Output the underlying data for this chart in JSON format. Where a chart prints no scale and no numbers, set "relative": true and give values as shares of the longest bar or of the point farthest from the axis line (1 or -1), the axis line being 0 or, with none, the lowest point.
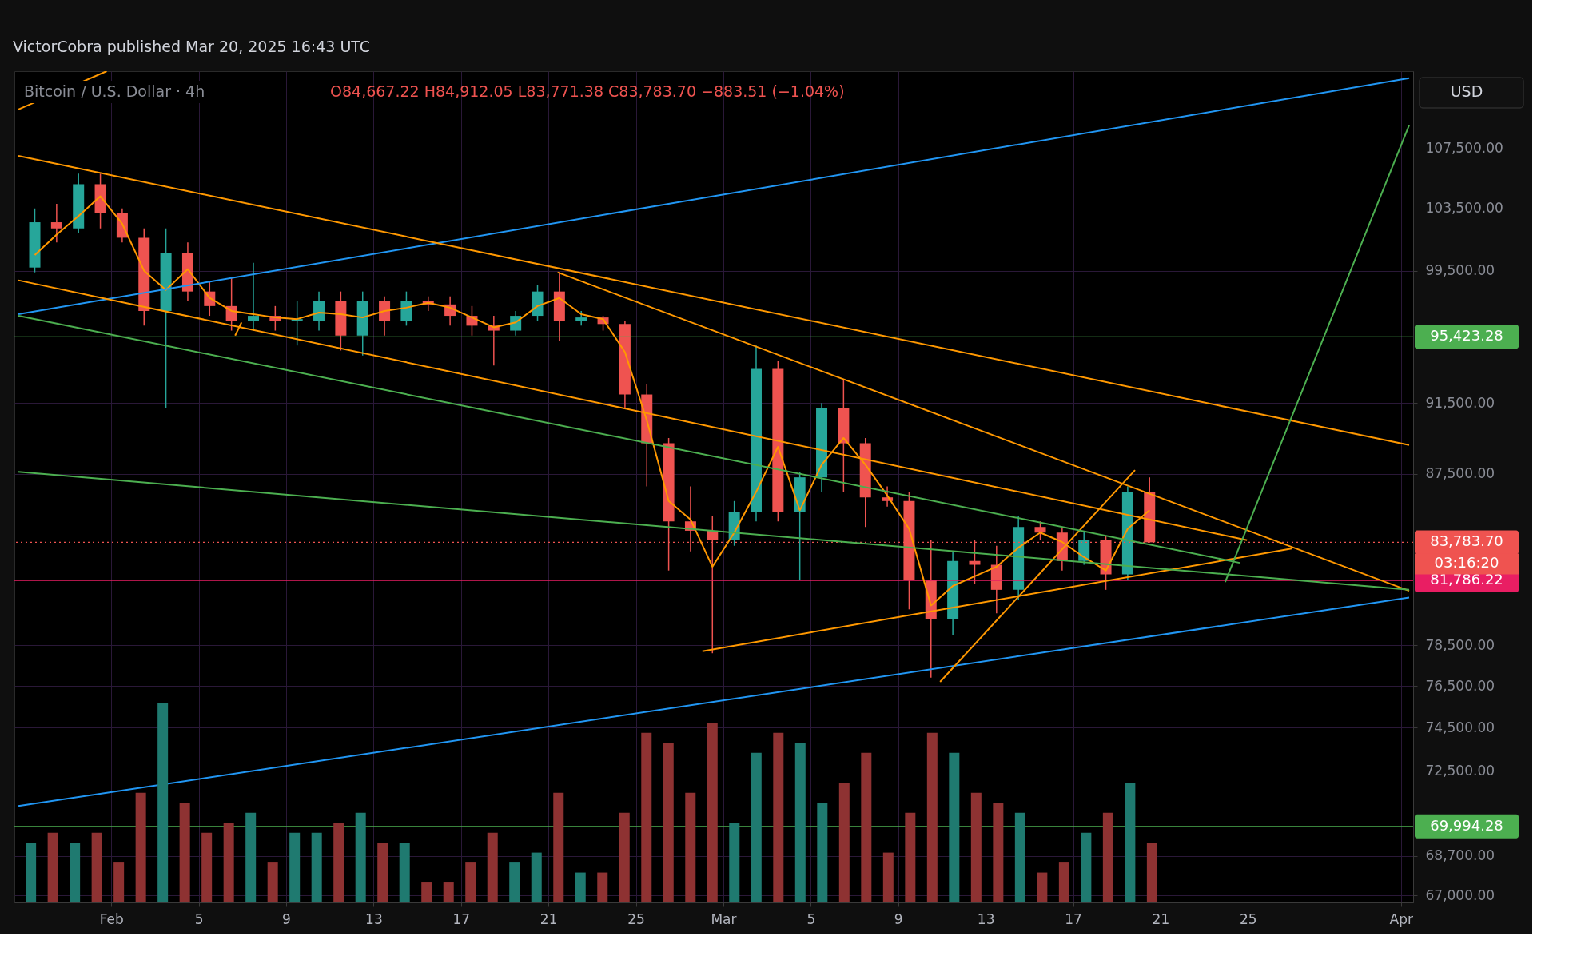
{
  "chart_data": [
    {
      "type": "candlestick",
      "title": "Bitcoin / U.S. Dollar · 4h",
      "annotations": [
        "VictorCobra published Mar 20, 2025 16:43 UTC",
        "O84,667.22 H84,912.05 L83,771.38 C83,783.70 −883.51 (−1.04%)",
        "USD",
        "03:16:20"
      ],
      "x": [
        "2025-01-28T12:00",
        "2025-01-29T12:00",
        "2025-01-30T12:00",
        "2025-01-31T12:00",
        "2025-02-01T12:00",
        "2025-02-02T12:00",
        "2025-02-03T12:00",
        "2025-02-04T12:00",
        "2025-02-05T12:00",
        "2025-02-06T12:00",
        "2025-02-07T12:00",
        "2025-02-08T12:00",
        "2025-02-09T12:00",
        "2025-02-10T12:00",
        "2025-02-11T12:00",
        "2025-02-12T12:00",
        "2025-02-13T12:00",
        "2025-02-14T12:00",
        "2025-02-15T12:00",
        "2025-02-16T12:00",
        "2025-02-17T12:00",
        "2025-02-18T12:00",
        "2025-02-19T12:00",
        "2025-02-20T12:00",
        "2025-02-21T12:00",
        "2025-02-22T12:00",
        "2025-02-23T12:00",
        "2025-02-24T12:00",
        "2025-02-25T12:00",
        "2025-02-26T12:00",
        "2025-02-27T12:00",
        "2025-02-28T12:00",
        "2025-03-01T12:00",
        "2025-03-02T12:00",
        "2025-03-03T12:00",
        "2025-03-04T12:00",
        "2025-03-05T12:00",
        "2025-03-06T12:00",
        "2025-03-07T12:00",
        "2025-03-08T12:00",
        "2025-03-09T12:00",
        "2025-03-10T12:00",
        "2025-03-11T12:00",
        "2025-03-12T12:00",
        "2025-03-13T12:00",
        "2025-03-14T12:00",
        "2025-03-15T12:00",
        "2025-03-16T12:00",
        "2025-03-17T12:00",
        "2025-03-18T12:00",
        "2025-03-19T12:00",
        "2025-03-20T12:00"
      ],
      "ohlc": [
        [
          99700,
          103500,
          99400,
          102600
        ],
        [
          102600,
          103800,
          101300,
          102200
        ],
        [
          102200,
          105800,
          101900,
          105100
        ],
        [
          105100,
          105800,
          102200,
          103200
        ],
        [
          103200,
          103500,
          101300,
          101600
        ],
        [
          101600,
          102200,
          96100,
          97000
        ],
        [
          97000,
          102200,
          91200,
          100600
        ],
        [
          100600,
          101300,
          97600,
          98200
        ],
        [
          98200,
          98800,
          96700,
          97300
        ],
        [
          97300,
          99100,
          95800,
          96400
        ],
        [
          96400,
          100000,
          95800,
          96700
        ],
        [
          96700,
          97300,
          95800,
          96400
        ],
        [
          96400,
          97600,
          94900,
          96500
        ],
        [
          96400,
          98200,
          95800,
          97600
        ],
        [
          97600,
          98200,
          94600,
          95500
        ],
        [
          95500,
          98200,
          94300,
          97600
        ],
        [
          97600,
          97900,
          95500,
          96400
        ],
        [
          96400,
          98200,
          96100,
          97600
        ],
        [
          97600,
          97900,
          97000,
          97400
        ],
        [
          97400,
          97900,
          96100,
          96700
        ],
        [
          96700,
          97300,
          95500,
          96100
        ],
        [
          96100,
          96700,
          93700,
          95800
        ],
        [
          95800,
          97000,
          95500,
          96700
        ],
        [
          96700,
          98600,
          96400,
          98200
        ],
        [
          98200,
          99400,
          95200,
          96400
        ],
        [
          96400,
          97000,
          96100,
          96600
        ],
        [
          96600,
          96700,
          95800,
          96200
        ],
        [
          96200,
          96400,
          91200,
          92000
        ],
        [
          92000,
          92600,
          86800,
          89200
        ],
        [
          89200,
          89500,
          82300,
          84900
        ],
        [
          84900,
          86800,
          83300,
          84400
        ],
        [
          84400,
          85200,
          78100,
          83900
        ],
        [
          83900,
          86000,
          83600,
          85400
        ],
        [
          85400,
          94900,
          84900,
          93500
        ],
        [
          93500,
          94000,
          84900,
          85400
        ],
        [
          85400,
          87600,
          81800,
          87300
        ],
        [
          87300,
          91500,
          86500,
          91200
        ],
        [
          91200,
          92900,
          86500,
          89200
        ],
        [
          89200,
          89500,
          84600,
          86200
        ],
        [
          86200,
          86800,
          85700,
          86000
        ],
        [
          86000,
          86500,
          80300,
          81800
        ],
        [
          81800,
          83900,
          76900,
          79800
        ],
        [
          79800,
          83300,
          79000,
          82800
        ],
        [
          82800,
          83900,
          81600,
          82600
        ],
        [
          82600,
          83600,
          80100,
          81300
        ],
        [
          81300,
          85200,
          80800,
          84600
        ],
        [
          84600,
          84900,
          83900,
          84300
        ],
        [
          84300,
          84600,
          82300,
          82800
        ],
        [
          82800,
          84400,
          82600,
          83900
        ],
        [
          83900,
          84100,
          81300,
          82100
        ],
        [
          82100,
          86800,
          81800,
          86500
        ],
        [
          86500,
          87300,
          83771.38,
          83783.7
        ]
      ],
      "colors": [
        "#26a69a",
        "#ef5350",
        "#26a69a",
        "#ef5350",
        "#ef5350",
        "#ef5350",
        "#26a69a",
        "#ef5350",
        "#ef5350",
        "#ef5350",
        "#26a69a",
        "#ef5350",
        "#26a69a",
        "#26a69a",
        "#ef5350",
        "#26a69a",
        "#ef5350",
        "#26a69a",
        "#ef5350",
        "#ef5350",
        "#ef5350",
        "#ef5350",
        "#26a69a",
        "#26a69a",
        "#ef5350",
        "#26a69a",
        "#ef5350",
        "#ef5350",
        "#ef5350",
        "#ef5350",
        "#ef5350",
        "#ef5350",
        "#26a69a",
        "#26a69a",
        "#ef5350",
        "#26a69a",
        "#26a69a",
        "#ef5350",
        "#ef5350",
        "#ef5350",
        "#ef5350",
        "#ef5350",
        "#26a69a",
        "#ef5350",
        "#ef5350",
        "#26a69a",
        "#ef5350",
        "#ef5350",
        "#26a69a",
        "#ef5350",
        "#26a69a",
        "#ef5350"
      ],
      "series": [
        {
          "type": "line",
          "color": "#ff9800",
          "x": [
            "2025-01-28T12:00",
            "2025-01-29T12:00",
            "2025-01-30T12:00",
            "2025-01-31T12:00",
            "2025-02-01T12:00",
            "2025-02-02T12:00",
            "2025-02-03T12:00",
            "2025-02-04T12:00",
            "2025-02-05T12:00",
            "2025-02-06T12:00",
            "2025-02-07T12:00",
            "2025-02-08T12:00",
            "2025-02-09T12:00",
            "2025-02-10T12:00",
            "2025-02-11T12:00",
            "2025-02-12T12:00",
            "2025-02-13T12:00",
            "2025-02-14T12:00",
            "2025-02-15T12:00",
            "2025-02-16T12:00",
            "2025-02-17T12:00",
            "2025-02-18T12:00",
            "2025-02-19T12:00",
            "2025-02-20T12:00",
            "2025-02-21T12:00",
            "2025-02-22T12:00",
            "2025-02-23T12:00",
            "2025-02-24T12:00",
            "2025-02-25T12:00",
            "2025-02-26T12:00",
            "2025-02-27T12:00",
            "2025-02-28T12:00",
            "2025-03-01T12:00",
            "2025-03-02T12:00",
            "2025-03-03T12:00",
            "2025-03-04T12:00",
            "2025-03-05T12:00",
            "2025-03-06T12:00",
            "2025-03-07T12:00",
            "2025-03-08T12:00",
            "2025-03-09T12:00",
            "2025-03-10T12:00",
            "2025-03-11T12:00",
            "2025-03-12T12:00",
            "2025-03-13T12:00",
            "2025-03-14T12:00",
            "2025-03-15T12:00",
            "2025-03-16T12:00",
            "2025-03-17T12:00",
            "2025-03-18T12:00",
            "2025-03-19T12:00",
            "2025-03-20T12:00"
          ],
          "values": [
            100500,
            101800,
            103000,
            104300,
            102500,
            99500,
            98300,
            99600,
            97800,
            97000,
            96800,
            96600,
            96500,
            96900,
            96800,
            96600,
            97000,
            97200,
            97500,
            97200,
            96600,
            96000,
            96300,
            97300,
            97800,
            96800,
            96500,
            94500,
            90500,
            86000,
            85000,
            82500,
            84300,
            86500,
            89000,
            85500,
            88000,
            89500,
            88000,
            86300,
            84500,
            80500,
            81500,
            82000,
            82500,
            83500,
            84300,
            83800,
            83000,
            82300,
            84500,
            85500
          ]
        },
        {
          "type": "line",
          "color": "#2196f3",
          "x": [
            "2025-01-27T18:00",
            "2025-04-01T09:00"
          ],
          "values": [
            96800,
            112400
          ]
        },
        {
          "type": "line",
          "color": "#2196f3",
          "x": [
            "2025-01-27T18:00",
            "2025-04-01T09:00"
          ],
          "values": [
            70900,
            80900
          ]
        },
        {
          "type": "line",
          "color": "#ff9800",
          "x": [
            "2025-01-27T18:00",
            "2025-01-31T19:00"
          ],
          "values": [
            110200,
            112900
          ]
        },
        {
          "type": "line",
          "color": "#ff9800",
          "x": [
            "2025-01-27T18:00",
            "2025-04-01T09:00"
          ],
          "values": [
            107000,
            89100
          ]
        },
        {
          "type": "line",
          "color": "#ff9800",
          "x": [
            "2025-02-21T10:00",
            "2025-04-01T09:00"
          ],
          "values": [
            99400,
            81250
          ]
        },
        {
          "type": "line",
          "color": "#ff9800",
          "x": [
            "2025-01-27T18:00",
            "2025-03-24T23:00"
          ],
          "values": [
            98900,
            83900
          ]
        },
        {
          "type": "line",
          "color": "#ff9800",
          "x": [
            "2025-02-28T01:00",
            "2025-03-27T00:00"
          ],
          "values": [
            78200,
            83450
          ]
        },
        {
          "type": "line",
          "color": "#ff9800",
          "x": [
            "2025-03-10T22:00",
            "2025-03-19T20:00"
          ],
          "values": [
            76700,
            87700
          ]
        },
        {
          "type": "line",
          "color": "#ff9800",
          "x": [
            "2025-02-06T16:00",
            "2025-02-06T23:00"
          ],
          "values": [
            95500,
            96300
          ]
        },
        {
          "type": "line",
          "color": "#4caf50",
          "x": [
            "2025-01-27T18:00",
            "2025-03-24T15:00"
          ],
          "values": [
            96700,
            82700
          ]
        },
        {
          "type": "line",
          "color": "#4caf50",
          "x": [
            "2025-01-27T18:00",
            "2025-04-01T09:00"
          ],
          "values": [
            87600,
            81300
          ]
        },
        {
          "type": "line",
          "color": "#4caf50",
          "x": [
            "2025-03-23T23:00",
            "2025-04-01T09:00"
          ],
          "values": [
            81700,
            109100
          ]
        }
      ],
      "ref_lines": [
        {
          "axis": "y",
          "value": 95423.28,
          "label": "95,423.28",
          "color": "#4caf50"
        },
        {
          "axis": "y",
          "value": 69994.28,
          "label": "69,994.28",
          "color": "#4caf50"
        },
        {
          "axis": "y",
          "value": 81786.22,
          "label": "81,786.22",
          "color": "#e91e63"
        },
        {
          "axis": "y",
          "value": 83783.7,
          "label": "83,783.70",
          "color": "#ef5350",
          "line_style": "dotted"
        }
      ],
      "xlim": [
        "2025-01-27T18:00",
        "2025-04-01T09:00"
      ],
      "xticks": [
        {
          "value": "2025-02-01T00:00",
          "label": "Feb"
        },
        {
          "value": "2025-02-05T00:00",
          "label": "5"
        },
        {
          "value": "2025-02-09T00:00",
          "label": "9"
        },
        {
          "value": "2025-02-13T00:00",
          "label": "13"
        },
        {
          "value": "2025-02-17T00:00",
          "label": "17"
        },
        {
          "value": "2025-02-21T00:00",
          "label": "21"
        },
        {
          "value": "2025-02-25T00:00",
          "label": "25"
        },
        {
          "value": "2025-03-01T00:00",
          "label": "Mar"
        },
        {
          "value": "2025-03-05T00:00",
          "label": "5"
        },
        {
          "value": "2025-03-09T00:00",
          "label": "9"
        },
        {
          "value": "2025-03-13T00:00",
          "label": "13"
        },
        {
          "value": "2025-03-17T00:00",
          "label": "17"
        },
        {
          "value": "2025-03-21T00:00",
          "label": "21"
        },
        {
          "value": "2025-03-25T00:00",
          "label": "25"
        },
        {
          "value": "2025-04-01T00:00",
          "label": "Apr"
        }
      ],
      "ylim": [
        66700,
        112900
      ],
      "log": true,
      "yticks": [
        {
          "value": 67000,
          "label": "67,000.00"
        },
        {
          "value": 68700,
          "label": "68,700.00"
        },
        {
          "value": 72500,
          "label": "72,500.00"
        },
        {
          "value": 74500,
          "label": "74,500.00"
        },
        {
          "value": 76500,
          "label": "76,500.00"
        },
        {
          "value": 78500,
          "label": "78,500.00"
        },
        {
          "value": 87500,
          "label": "87,500.00"
        },
        {
          "value": 91500,
          "label": "91,500.00"
        },
        {
          "value": 99500,
          "label": "99,500.00"
        },
        {
          "value": 103500,
          "label": "103,500.00"
        },
        {
          "value": 107500,
          "label": "107,500.00"
        }
      ],
      "grid": true
    },
    {
      "type": "bar",
      "relative": true,
      "categories": [
        null,
        null,
        null,
        null,
        null,
        null,
        null,
        null,
        null,
        null,
        null,
        null,
        null,
        null,
        null,
        null,
        null,
        null,
        null,
        null,
        null,
        null,
        null,
        null,
        null,
        null,
        null,
        null,
        null,
        null,
        null,
        null,
        null,
        null,
        null,
        null,
        null,
        null,
        null,
        null,
        null,
        null,
        null,
        null,
        null,
        null,
        null,
        null,
        null,
        null,
        null,
        null
      ],
      "values": [
        0.3,
        0.35,
        0.3,
        0.35,
        0.2,
        0.55,
        1,
        0.5,
        0.35,
        0.4,
        0.45,
        0.2,
        0.35,
        0.35,
        0.4,
        0.45,
        0.3,
        0.3,
        0.1,
        0.1,
        0.2,
        0.35,
        0.2,
        0.25,
        0.55,
        0.15,
        0.15,
        0.45,
        0.85,
        0.8,
        0.55,
        0.9,
        0.4,
        0.75,
        0.85,
        0.8,
        0.5,
        0.6,
        0.75,
        0.25,
        0.45,
        0.85,
        0.75,
        0.55,
        0.5,
        0.45,
        0.15,
        0.2,
        0.35,
        0.45,
        0.6,
        0.3
      ],
      "colors": [
        "#1f7a70",
        "#8e3232",
        "#1f7a70",
        "#8e3232",
        "#8e3232",
        "#8e3232",
        "#1f7a70",
        "#8e3232",
        "#8e3232",
        "#8e3232",
        "#1f7a70",
        "#8e3232",
        "#1f7a70",
        "#1f7a70",
        "#8e3232",
        "#1f7a70",
        "#8e3232",
        "#1f7a70",
        "#8e3232",
        "#8e3232",
        "#8e3232",
        "#8e3232",
        "#1f7a70",
        "#1f7a70",
        "#8e3232",
        "#1f7a70",
        "#8e3232",
        "#8e3232",
        "#8e3232",
        "#8e3232",
        "#8e3232",
        "#8e3232",
        "#1f7a70",
        "#1f7a70",
        "#8e3232",
        "#1f7a70",
        "#1f7a70",
        "#8e3232",
        "#8e3232",
        "#8e3232",
        "#8e3232",
        "#8e3232",
        "#1f7a70",
        "#8e3232",
        "#8e3232",
        "#1f7a70",
        "#8e3232",
        "#8e3232",
        "#1f7a70",
        "#8e3232",
        "#1f7a70",
        "#8e3232"
      ]
    }
  ]
}
